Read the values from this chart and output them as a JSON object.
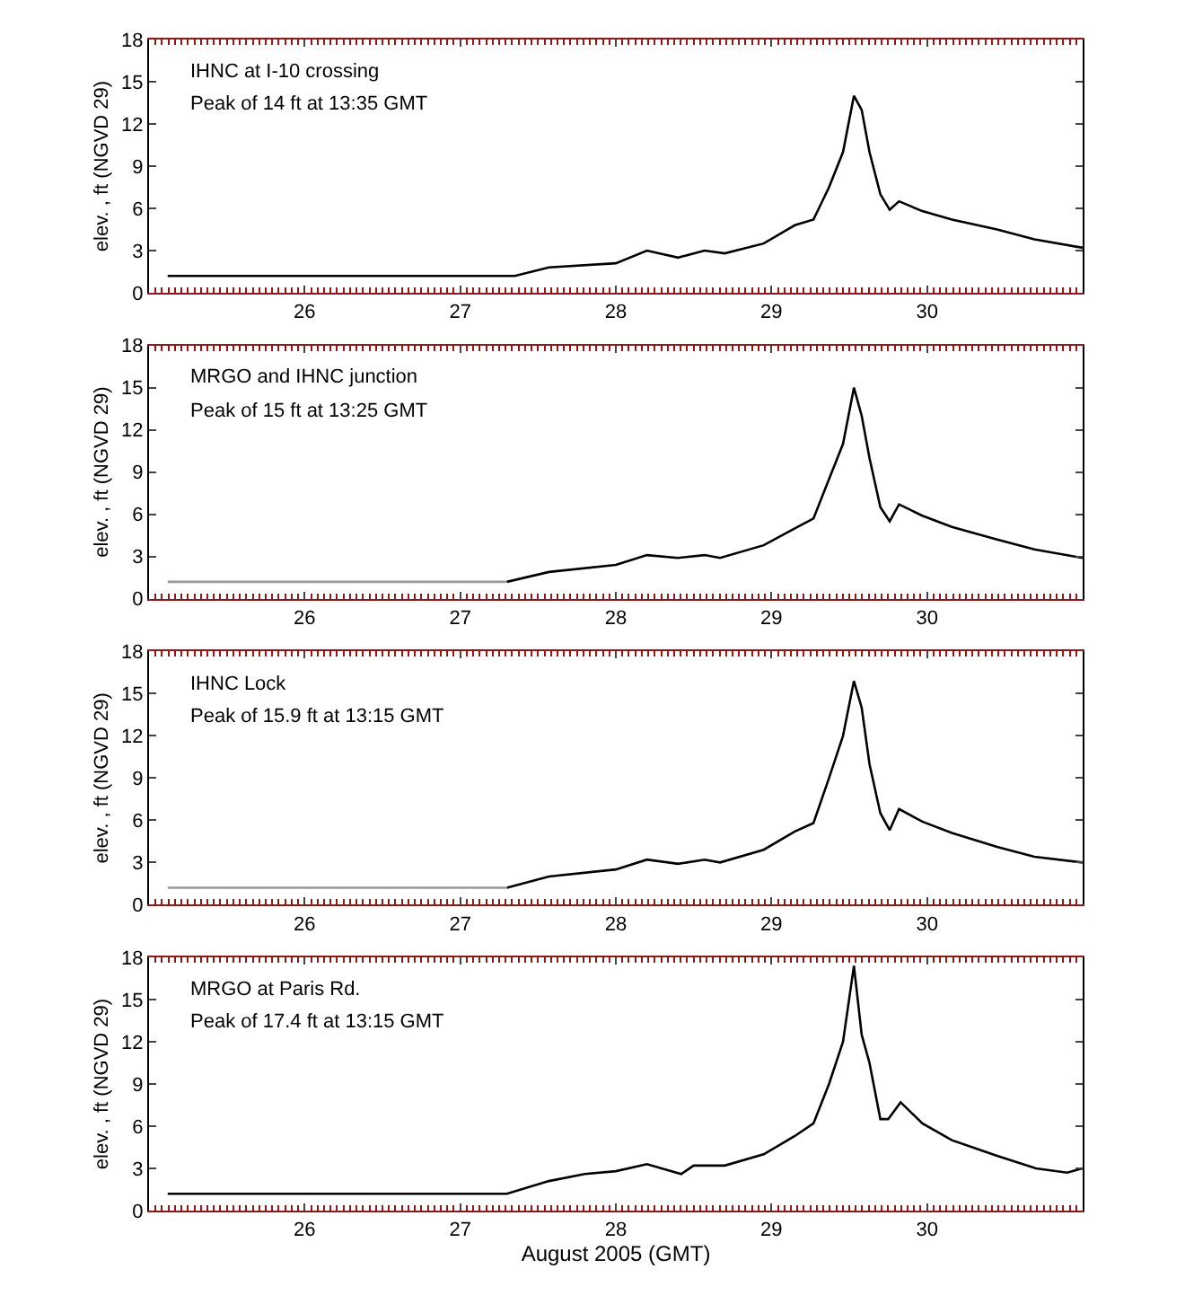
{
  "chart_data": [
    {
      "type": "line",
      "ylabel": "elev. , ft (NGVD 29)",
      "annotations": [
        "IHNC at I-10 crossing",
        "Peak of 14 ft at 13:35 GMT"
      ],
      "xlim": [
        25,
        31
      ],
      "xticks": [
        26,
        27,
        28,
        29,
        30
      ],
      "ylim": [
        0,
        18
      ],
      "yticks": [
        0,
        3,
        6,
        9,
        12,
        15,
        18
      ],
      "series": [
        {
          "color": "#000000",
          "x": [
            25.12,
            27.35,
            27.57,
            28.0,
            28.2,
            28.4,
            28.57,
            28.7,
            28.95,
            29.15,
            29.27,
            29.37,
            29.46,
            29.53,
            29.58,
            29.63,
            29.7,
            29.76,
            29.82,
            29.97,
            30.16,
            30.45,
            30.69,
            31.0
          ],
          "values": [
            1.2,
            1.2,
            1.8,
            2.1,
            3.0,
            2.5,
            3.0,
            2.8,
            3.5,
            4.8,
            5.2,
            7.5,
            10,
            14,
            13,
            10,
            7,
            5.9,
            6.5,
            5.8,
            5.2,
            4.5,
            3.8,
            3.2
          ]
        }
      ]
    },
    {
      "type": "line",
      "ylabel": "elev. , ft (NGVD 29)",
      "annotations": [
        "MRGO and IHNC junction",
        "Peak of 15 ft at 13:25 GMT"
      ],
      "xlim": [
        25,
        31
      ],
      "xticks": [
        26,
        27,
        28,
        29,
        30
      ],
      "ylim": [
        0,
        18
      ],
      "yticks": [
        0,
        3,
        6,
        9,
        12,
        15,
        18
      ],
      "series": [
        {
          "color": "#999999",
          "x": [
            25.12,
            27.3
          ],
          "values": [
            1.2,
            1.2
          ]
        },
        {
          "color": "#000000",
          "x": [
            27.3,
            27.57,
            28.0,
            28.2,
            28.4,
            28.57,
            28.67,
            28.95,
            29.15,
            29.27,
            29.37,
            29.46,
            29.53,
            29.58,
            29.63,
            29.7,
            29.76,
            29.82,
            29.97,
            30.16,
            30.45,
            30.69,
            31.0
          ],
          "values": [
            1.2,
            1.9,
            2.4,
            3.1,
            2.9,
            3.1,
            2.9,
            3.8,
            5.0,
            5.7,
            8.5,
            11,
            15,
            13,
            10,
            6.5,
            5.5,
            6.7,
            5.9,
            5.1,
            4.2,
            3.5,
            2.9
          ]
        }
      ]
    },
    {
      "type": "line",
      "ylabel": "elev. , ft (NGVD 29)",
      "annotations": [
        "IHNC Lock",
        "Peak of 15.9 ft at 13:15 GMT"
      ],
      "xlim": [
        25,
        31
      ],
      "xticks": [
        26,
        27,
        28,
        29,
        30
      ],
      "ylim": [
        0,
        18
      ],
      "yticks": [
        0,
        3,
        6,
        9,
        12,
        15,
        18
      ],
      "series": [
        {
          "color": "#999999",
          "x": [
            25.12,
            27.3
          ],
          "values": [
            1.2,
            1.2
          ]
        },
        {
          "color": "#000000",
          "x": [
            27.3,
            27.57,
            28.0,
            28.2,
            28.4,
            28.57,
            28.67,
            28.95,
            29.15,
            29.27,
            29.37,
            29.46,
            29.53,
            29.58,
            29.63,
            29.7,
            29.76,
            29.82,
            29.97,
            30.16,
            30.45,
            30.69,
            31.0
          ],
          "values": [
            1.2,
            2.0,
            2.5,
            3.2,
            2.9,
            3.2,
            3.0,
            3.9,
            5.2,
            5.8,
            9.0,
            12,
            15.9,
            14,
            10,
            6.5,
            5.3,
            6.8,
            5.9,
            5.1,
            4.1,
            3.4,
            3.0
          ]
        }
      ]
    },
    {
      "type": "line",
      "ylabel": "elev. , ft (NGVD 29)",
      "xlabel": "August 2005 (GMT)",
      "annotations": [
        "MRGO at Paris Rd.",
        "Peak of 17.4 ft at 13:15 GMT"
      ],
      "xlim": [
        25,
        31
      ],
      "xticks": [
        26,
        27,
        28,
        29,
        30
      ],
      "ylim": [
        0,
        18
      ],
      "yticks": [
        0,
        3,
        6,
        9,
        12,
        15,
        18
      ],
      "series": [
        {
          "color": "#000000",
          "x": [
            25.12,
            27.3,
            27.57,
            27.8,
            28.0,
            28.2,
            28.42,
            28.5,
            28.7,
            28.95,
            29.15,
            29.27,
            29.37,
            29.46,
            29.53,
            29.58,
            29.63,
            29.7,
            29.75,
            29.83,
            29.97,
            30.16,
            30.45,
            30.7,
            30.9,
            31.0
          ],
          "values": [
            1.2,
            1.2,
            2.1,
            2.6,
            2.8,
            3.3,
            2.6,
            3.2,
            3.2,
            4.0,
            5.3,
            6.2,
            9.0,
            12,
            17.4,
            12.5,
            10.5,
            6.5,
            6.5,
            7.7,
            6.2,
            5.0,
            3.9,
            3.0,
            2.7,
            3.0
          ]
        }
      ]
    }
  ]
}
